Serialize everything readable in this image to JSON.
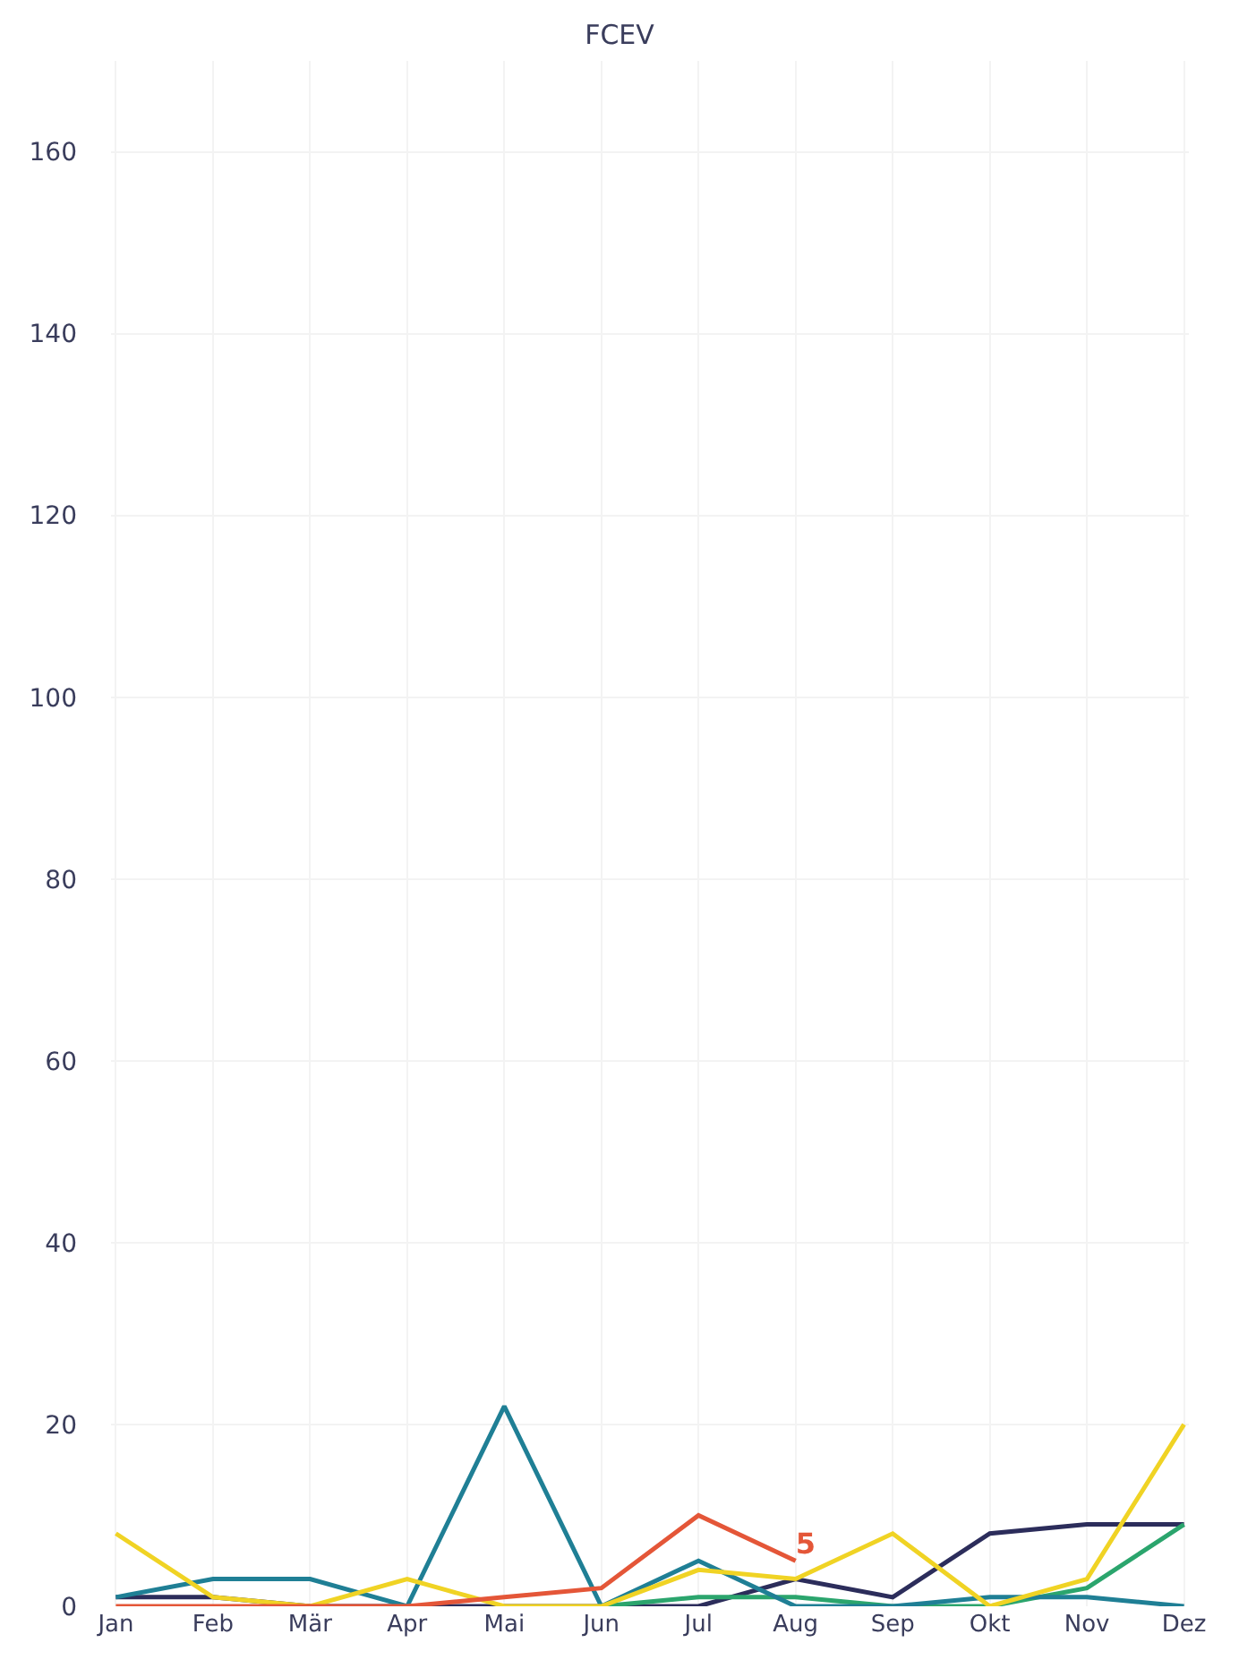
{
  "chart_data": {
    "type": "line",
    "title": "FCEV",
    "categories": [
      "Jan",
      "Feb",
      "Mär",
      "Apr",
      "Mai",
      "Jun",
      "Jul",
      "Aug",
      "Sep",
      "Okt",
      "Nov",
      "Dez"
    ],
    "series": [
      {
        "color": "#2c2d5b",
        "values": [
          1,
          1,
          0,
          0,
          0,
          0,
          0,
          3,
          1,
          8,
          9,
          9
        ]
      },
      {
        "color": "#2ba56d",
        "values": [
          null,
          null,
          null,
          null,
          null,
          0,
          1,
          1,
          0,
          0,
          2,
          9
        ]
      },
      {
        "color": "#1f7f95",
        "values": [
          1,
          3,
          3,
          0,
          22,
          0,
          5,
          0,
          0,
          1,
          1,
          0
        ]
      },
      {
        "color": "#f0d324",
        "values": [
          8,
          1,
          0,
          3,
          0,
          0,
          4,
          3,
          8,
          0,
          3,
          20
        ]
      },
      {
        "color": "#e45638",
        "values": [
          0,
          0,
          0,
          0,
          1,
          2,
          10,
          5,
          null,
          null,
          null,
          null
        ],
        "value_labels": [
          null,
          null,
          null,
          null,
          null,
          null,
          null,
          "5",
          null,
          null,
          null,
          null
        ]
      }
    ],
    "ylim": [
      0,
      170
    ],
    "yticks": [
      0,
      20,
      40,
      60,
      80,
      100,
      120,
      140,
      160
    ],
    "grid": true,
    "marker": "none",
    "line_style": "solid"
  }
}
